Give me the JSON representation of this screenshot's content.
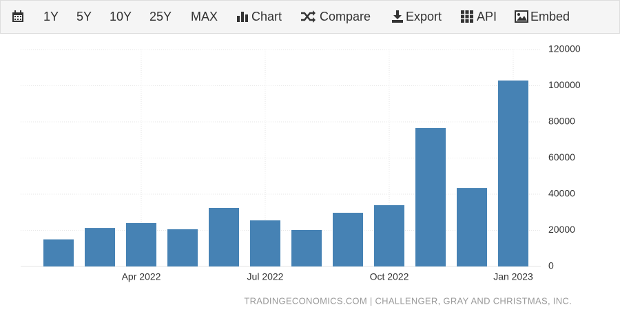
{
  "toolbar": {
    "items": [
      "1Y",
      "5Y",
      "10Y",
      "25Y",
      "MAX",
      "Chart",
      "Compare",
      "Export",
      "API",
      "Embed"
    ]
  },
  "chart_data": {
    "type": "bar",
    "categories": [
      null,
      null,
      "Apr 2022",
      null,
      null,
      "Jul 2022",
      null,
      null,
      "Oct 2022",
      null,
      null,
      "Jan 2023"
    ],
    "values": [
      15000,
      21300,
      24000,
      20600,
      32400,
      25500,
      20200,
      29700,
      33900,
      76600,
      43400,
      102900
    ],
    "color": "#4682b4",
    "ylim": [
      0,
      120000
    ],
    "yticks": [
      0,
      20000,
      40000,
      60000,
      80000,
      100000,
      120000
    ],
    "grid": true,
    "source": "TRADINGECONOMICS.COM | CHALLENGER, GRAY AND CHRISTMAS, INC."
  }
}
